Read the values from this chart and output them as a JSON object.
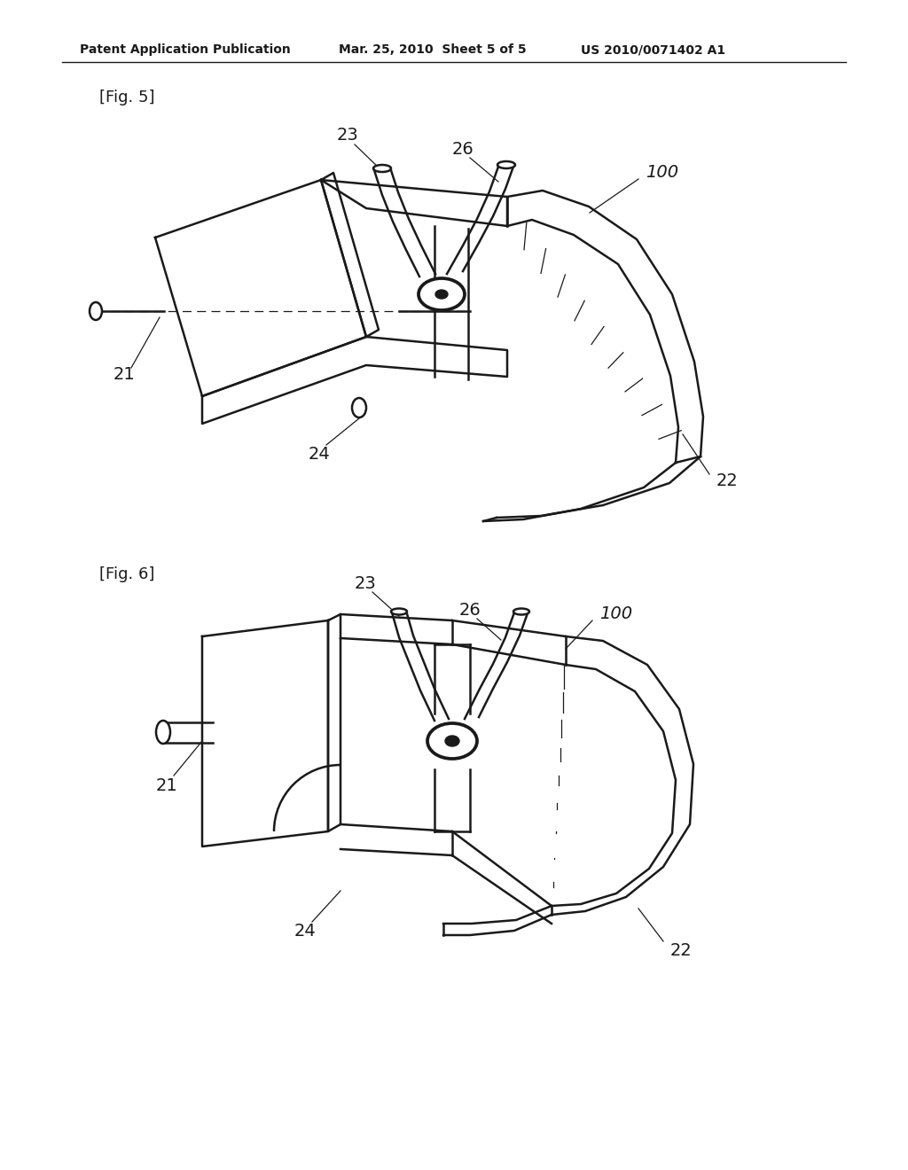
{
  "background_color": "#ffffff",
  "header_left": "Patent Application Publication",
  "header_mid": "Mar. 25, 2010  Sheet 5 of 5",
  "header_right": "US 2010/0071402 A1",
  "header_fontsize": 10,
  "fig5_label": "[Fig. 5]",
  "fig6_label": "[Fig. 6]",
  "label_fontsize": 13,
  "ref_fontsize": 14,
  "line_color": "#1a1a1a",
  "line_width": 1.8,
  "thin_line": 0.9
}
